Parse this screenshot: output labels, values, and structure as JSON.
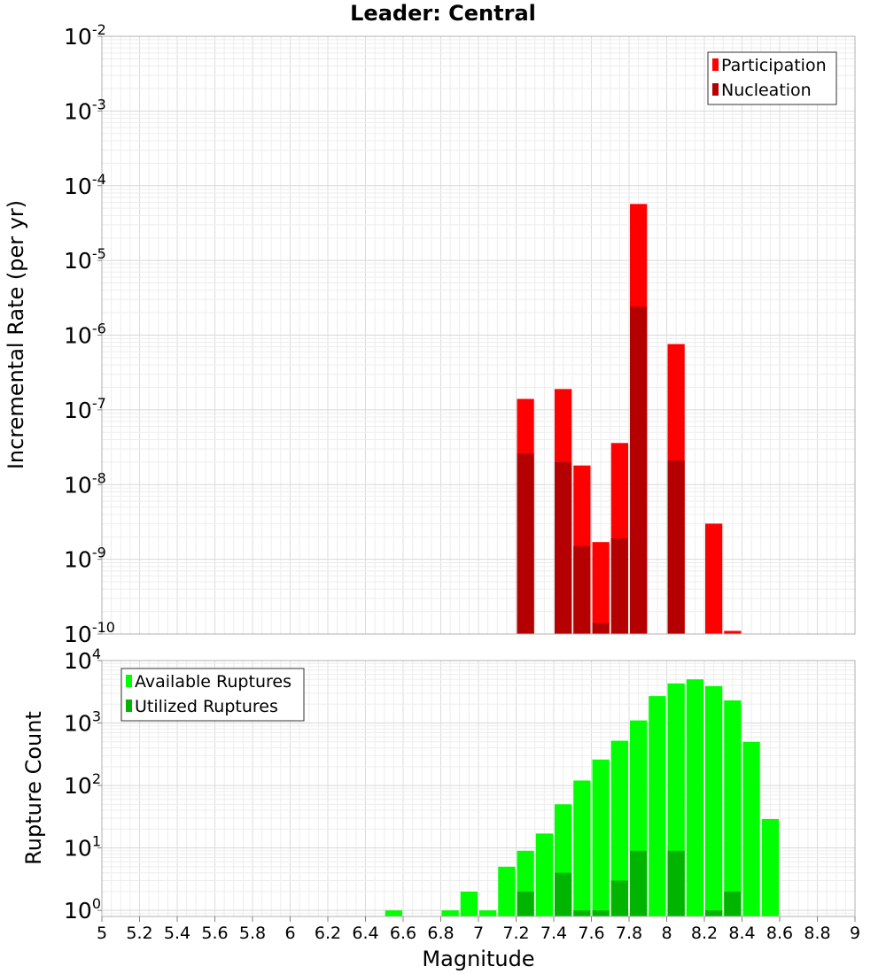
{
  "chart_data": {
    "type": "bar",
    "title": "Leader: Central",
    "xlabel": "Magnitude",
    "xlim": [
      5,
      9
    ],
    "x_ticks": [
      "5",
      "5.2",
      "5.4",
      "5.6",
      "5.8",
      "6",
      "6.2",
      "6.4",
      "6.6",
      "6.8",
      "7",
      "7.2",
      "7.4",
      "7.6",
      "7.8",
      "8",
      "8.2",
      "8.4",
      "8.6",
      "8.8",
      "9"
    ],
    "bin_width": 0.1,
    "grid": true,
    "colors": {
      "participation": "#ff0000",
      "nucleation": "#b40000",
      "available": "#00ff00",
      "utilized": "#00b400",
      "grid": "#e8e8e8",
      "frame": "#b0b0b0"
    },
    "panels": [
      {
        "ylabel": "Incremental Rate (per yr)",
        "yscale": "log",
        "ylim": [
          1e-10,
          0.01
        ],
        "y_tick_exponents": [
          "-10",
          "-9",
          "-8",
          "-7",
          "-6",
          "-5",
          "-4",
          "-3",
          "-2"
        ],
        "legend_position": "top-right",
        "series": [
          {
            "name": "Participation",
            "x": [
              7.25,
              7.45,
              7.55,
              7.65,
              7.75,
              7.85,
              8.05,
              8.25,
              8.35
            ],
            "values": [
              1.4e-07,
              1.9e-07,
              1.8e-08,
              1.7e-09,
              3.6e-08,
              5.7e-05,
              7.6e-07,
              3e-09,
              1.1e-10
            ]
          },
          {
            "name": "Nucleation",
            "x": [
              7.25,
              7.45,
              7.55,
              7.65,
              7.75,
              7.85,
              8.05
            ],
            "values": [
              2.6e-08,
              2e-08,
              1.5e-09,
              1.4e-10,
              1.9e-09,
              2.4e-06,
              2.1e-08
            ]
          }
        ]
      },
      {
        "ylabel": "Rupture Count",
        "yscale": "log",
        "ylim": [
          0.8,
          10000
        ],
        "y_tick_exponents": [
          "0",
          "1",
          "2",
          "3",
          "4"
        ],
        "legend_position": "top-left",
        "series": [
          {
            "name": "Available Ruptures",
            "x": [
              6.55,
              6.85,
              6.95,
              7.05,
              7.15,
              7.25,
              7.35,
              7.45,
              7.55,
              7.65,
              7.75,
              7.85,
              7.95,
              8.05,
              8.15,
              8.25,
              8.35,
              8.45,
              8.55
            ],
            "values": [
              1,
              1,
              2,
              1,
              5,
              9,
              17,
              50,
              120,
              260,
              520,
              1100,
              2700,
              4300,
              5000,
              3900,
              2300,
              500,
              29
            ]
          },
          {
            "name": "Utilized Ruptures",
            "x": [
              7.25,
              7.45,
              7.55,
              7.65,
              7.75,
              7.85,
              8.05,
              8.25,
              8.35
            ],
            "values": [
              2,
              4,
              1,
              1,
              3,
              9,
              9,
              1,
              2
            ]
          }
        ]
      }
    ]
  }
}
